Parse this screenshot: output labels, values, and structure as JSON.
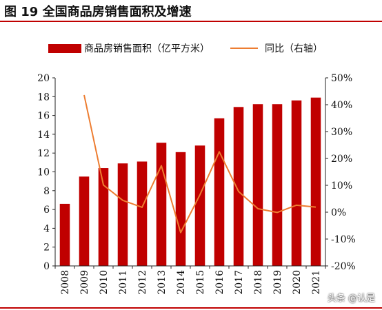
{
  "header": {
    "title": "图 19 全国商品房销售面积及增速"
  },
  "legend": {
    "bar_label": "商品房销售面积（亿平方米）",
    "line_label": "同比（右轴）"
  },
  "watermark": "头条 @认是",
  "colors": {
    "bar": "#c00000",
    "line": "#ed7d31",
    "rule": "#c00000"
  },
  "chart_data": {
    "type": "bar",
    "categories": [
      "2008",
      "2009",
      "2010",
      "2011",
      "2012",
      "2013",
      "2014",
      "2015",
      "2016",
      "2017",
      "2018",
      "2019",
      "2020",
      "2021"
    ],
    "series": [
      {
        "name": "商品房销售面积（亿平方米）",
        "type": "bar",
        "axis": "left",
        "values": [
          6.6,
          9.5,
          10.4,
          10.9,
          11.1,
          13.1,
          12.1,
          12.8,
          15.7,
          16.9,
          17.2,
          17.2,
          17.6,
          17.9
        ]
      },
      {
        "name": "同比（右轴）",
        "type": "line",
        "axis": "right",
        "values": [
          null,
          43.6,
          10.1,
          4.4,
          1.8,
          17.3,
          -7.6,
          6.5,
          22.5,
          7.7,
          1.3,
          -0.1,
          2.6,
          1.9
        ]
      }
    ],
    "y_left": {
      "min": 0,
      "max": 20,
      "ticks": [
        "0",
        "2",
        "4",
        "6",
        "8",
        "10",
        "12",
        "14",
        "16",
        "18",
        "20"
      ]
    },
    "y_right": {
      "min": -20,
      "max": 50,
      "ticks": [
        "-20%",
        "-10%",
        "0%",
        "10%",
        "20%",
        "30%",
        "40%",
        "50%"
      ]
    },
    "legend_position": "top",
    "grid": false
  }
}
